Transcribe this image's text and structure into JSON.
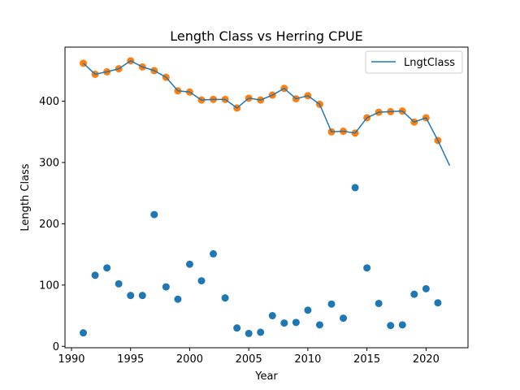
{
  "chart_data": {
    "type": "scatter",
    "title": "Length Class vs Herring CPUE",
    "xlabel": "Year",
    "ylabel": "Length Class",
    "xlim": [
      1989.45,
      2023.55
    ],
    "ylim": [
      -2.3,
      488.3
    ],
    "xticks": [
      1990,
      1995,
      2000,
      2005,
      2010,
      2015,
      2020
    ],
    "yticks": [
      0,
      100,
      200,
      300,
      400
    ],
    "grid": false,
    "legend": {
      "placement": "top-right",
      "entries": [
        "LngtClass"
      ]
    },
    "colors": {
      "line": "#1f77b4",
      "blue_points": "#1f77b4",
      "orange_points": "#ff7f0e"
    },
    "series": [
      {
        "name": "LngtClass",
        "kind": "line",
        "x": [
          1991,
          1992,
          1993,
          1994,
          1995,
          1996,
          1997,
          1998,
          1999,
          2000,
          2001,
          2002,
          2003,
          2004,
          2005,
          2006,
          2007,
          2008,
          2009,
          2010,
          2011,
          2012,
          2013,
          2014,
          2015,
          2016,
          2017,
          2018,
          2019,
          2020,
          2021,
          2022
        ],
        "y": [
          462,
          444,
          448,
          453,
          466,
          456,
          450,
          439,
          417,
          415,
          402,
          403,
          403,
          389,
          405,
          402,
          410,
          421,
          404,
          409,
          395,
          350,
          351,
          348,
          373,
          382,
          383,
          384,
          366,
          373,
          336,
          295
        ]
      },
      {
        "kind": "scatter-orange",
        "x": [
          1991,
          1992,
          1993,
          1994,
          1995,
          1996,
          1997,
          1998,
          1999,
          2000,
          2001,
          2002,
          2003,
          2004,
          2005,
          2006,
          2007,
          2008,
          2009,
          2010,
          2011,
          2012,
          2013,
          2014,
          2015,
          2016,
          2017,
          2018,
          2019,
          2020,
          2021
        ],
        "y": [
          462,
          444,
          448,
          453,
          466,
          456,
          450,
          439,
          417,
          415,
          402,
          403,
          403,
          389,
          405,
          402,
          410,
          421,
          404,
          409,
          395,
          350,
          351,
          348,
          373,
          382,
          383,
          384,
          366,
          373,
          336
        ]
      },
      {
        "kind": "scatter-blue",
        "x": [
          1991,
          1992,
          1993,
          1994,
          1995,
          1996,
          1997,
          1998,
          1999,
          2000,
          2001,
          2002,
          2003,
          2004,
          2005,
          2006,
          2007,
          2008,
          2009,
          2010,
          2011,
          2012,
          2013,
          2014,
          2015,
          2016,
          2017,
          2018,
          2019,
          2020,
          2021
        ],
        "y": [
          22,
          116,
          128,
          102,
          83,
          83,
          215,
          97,
          77,
          134,
          107,
          151,
          79,
          30,
          21,
          23,
          50,
          38,
          39,
          59,
          35,
          69,
          46,
          259,
          128,
          70,
          34,
          35,
          85,
          94,
          71
        ]
      }
    ]
  }
}
